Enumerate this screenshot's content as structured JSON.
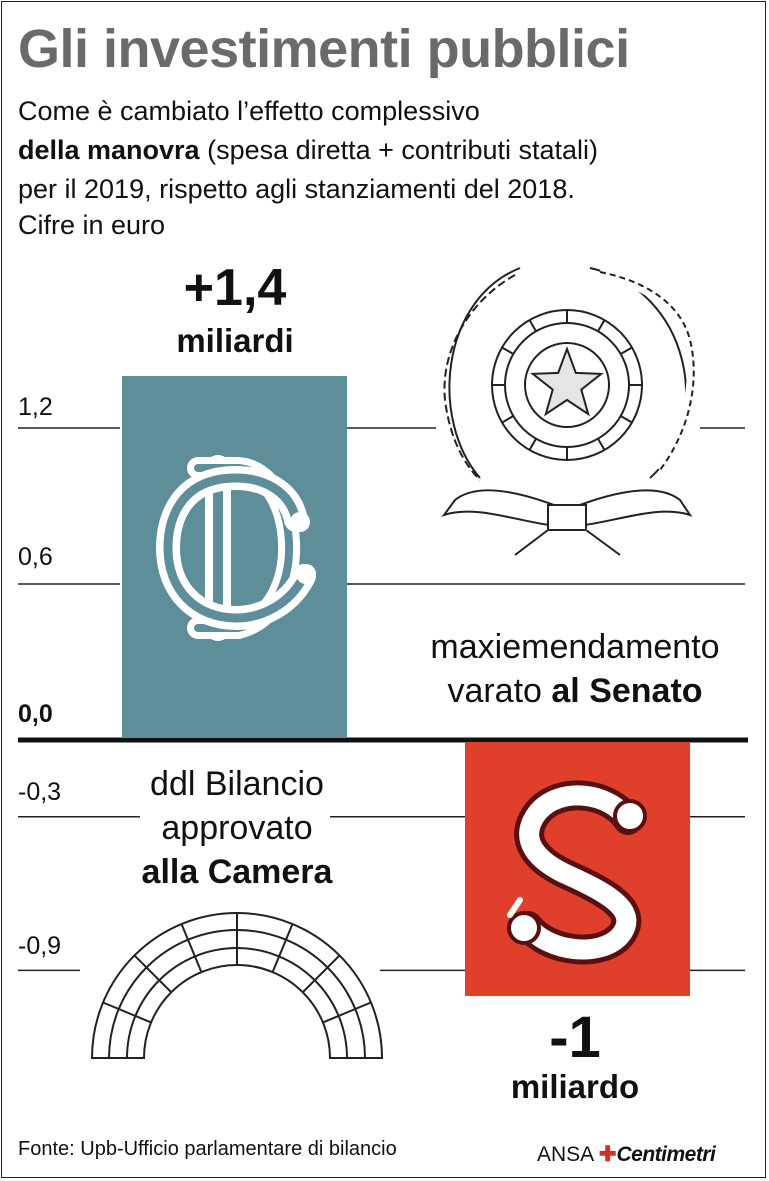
{
  "title": "Gli investimenti pubblici",
  "subtitle": {
    "line1": "Come è cambiato l’effetto complessivo",
    "line2_bold": "della manovra",
    "line2_rest": " (spesa diretta + contributi statali)",
    "line3": "per il 2019, rispetto agli stanziamenti del 2018.",
    "line4": "Cifre in euro"
  },
  "chart_data": {
    "type": "bar",
    "categories": [
      "ddl Bilancio approvato alla Camera",
      "maxiemendamento varato al Senato"
    ],
    "values": [
      1.4,
      -1
    ],
    "unit_labels": [
      "miliardi",
      "miliardo"
    ],
    "value_labels": [
      "+1,4",
      "-1"
    ],
    "yticks": [
      1.2,
      0.6,
      0.0,
      -0.3,
      -0.9
    ],
    "ytick_labels": [
      "1,2",
      "0,6",
      "0,0",
      "-0,3",
      "-0,9"
    ],
    "colors": [
      "#5e8e99",
      "#e0402b"
    ],
    "grid": true
  },
  "bar1": {
    "value_label": "+1,4",
    "unit": "miliardi",
    "emblem": "camera-dei-deputati-logo"
  },
  "bar2": {
    "value_label": "-1",
    "unit": "miliardo",
    "emblem": "senato-logo"
  },
  "labels": {
    "camera_line1": "ddl Bilancio",
    "camera_line2": "approvato",
    "camera_line3": "alla Camera",
    "senato_line1": "maxiemendamento",
    "senato_line2_plain": "varato ",
    "senato_line2_bold": "al Senato"
  },
  "footer": {
    "source": "Fonte: Upb-Ufficio parlamentare di bilancio",
    "agency": "ANSA",
    "brand": "Centimetri"
  }
}
